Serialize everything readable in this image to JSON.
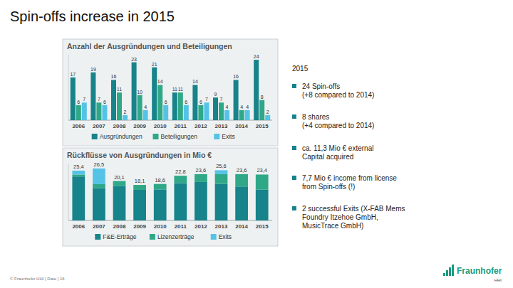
{
  "header": {
    "title": "Spin-offs increase in 2015"
  },
  "chart_data": [
    {
      "type": "bar",
      "title": "Anzahl der Ausgründungen und Beteiligungen",
      "categories": [
        "2006",
        "2007",
        "2008",
        "2009",
        "2010",
        "2011",
        "2012",
        "2013",
        "2014",
        "2015"
      ],
      "series": [
        {
          "name": "Ausgründungen",
          "color": "#17838a",
          "values": [
            17,
            19,
            16,
            23,
            21,
            11,
            14,
            9,
            16,
            24
          ]
        },
        {
          "name": "Beteiligungen",
          "color": "#2fa888",
          "values": [
            6,
            7,
            11,
            10,
            14,
            11,
            6,
            7,
            4,
            8
          ]
        },
        {
          "name": "Exits",
          "color": "#55c3e6",
          "values": [
            7,
            6,
            2,
            4,
            6,
            6,
            7,
            4,
            4,
            2
          ]
        }
      ],
      "ylim": [
        0,
        26
      ],
      "data_labels": true,
      "tick_labels": "x",
      "legend": "bottom"
    },
    {
      "type": "bar",
      "title": "Rückflüsse von Ausgründungen in Mio €",
      "categories": [
        "2006",
        "2007",
        "2008",
        "2009",
        "2010",
        "2011",
        "2012",
        "2013",
        "2014",
        "2015"
      ],
      "series": [
        {
          "name": "F&E-Erträge",
          "color": "#17838a",
          "values": [
            22.4,
            16.5,
            17.6,
            15.6,
            15.8,
            19.0,
            19.6,
            18.6,
            17.3,
            15.7
          ]
        },
        {
          "name": "Lizenzerträge",
          "color": "#2fa888",
          "values": [
            1.0,
            2.0,
            2.5,
            2.5,
            2.8,
            3.8,
            4.0,
            5.0,
            6.3,
            7.7
          ]
        },
        {
          "name": "Exits",
          "color": "#55c3e6",
          "values": [
            2.0,
            8.0,
            0,
            0,
            0,
            0,
            0,
            2.0,
            0,
            0
          ]
        }
      ],
      "totals": [
        25.4,
        26.5,
        20.1,
        18.1,
        18.6,
        22.8,
        23.6,
        25.6,
        23.6,
        23.4
      ],
      "total_labels": [
        "25,4",
        "26,5",
        "20,1",
        "18,1",
        "18,6",
        "22,8",
        "23,6",
        "25,6",
        "23,6",
        "23,4"
      ],
      "ylim": [
        0,
        29
      ],
      "stacked": true,
      "data_labels": false,
      "tick_labels": "x",
      "legend": "bottom"
    }
  ],
  "panel": {
    "heading": "2015",
    "bullets": [
      {
        "lines": [
          "24 Spin-offs",
          "(+8 compared to 2014)"
        ]
      },
      {
        "lines": [
          "8 shares",
          "(+4 compared to 2014)"
        ]
      },
      {
        "lines": [
          "ca. 11,3 Mio € external",
          "Capital acquired"
        ]
      },
      {
        "lines": [
          "7,7 Mio € income from license",
          "from Spin-offs (!)"
        ]
      },
      {
        "lines": [
          "2 successful Exits (X-FAB Mems",
          "Foundry Itzehoe GmbH,",
          "MusicTrace GmbH)"
        ]
      }
    ]
  },
  "footer": {
    "text": "© Fraunhofer HHI | Date | 16",
    "logo": "Fraunhofer",
    "logo_sub": "HHI"
  }
}
